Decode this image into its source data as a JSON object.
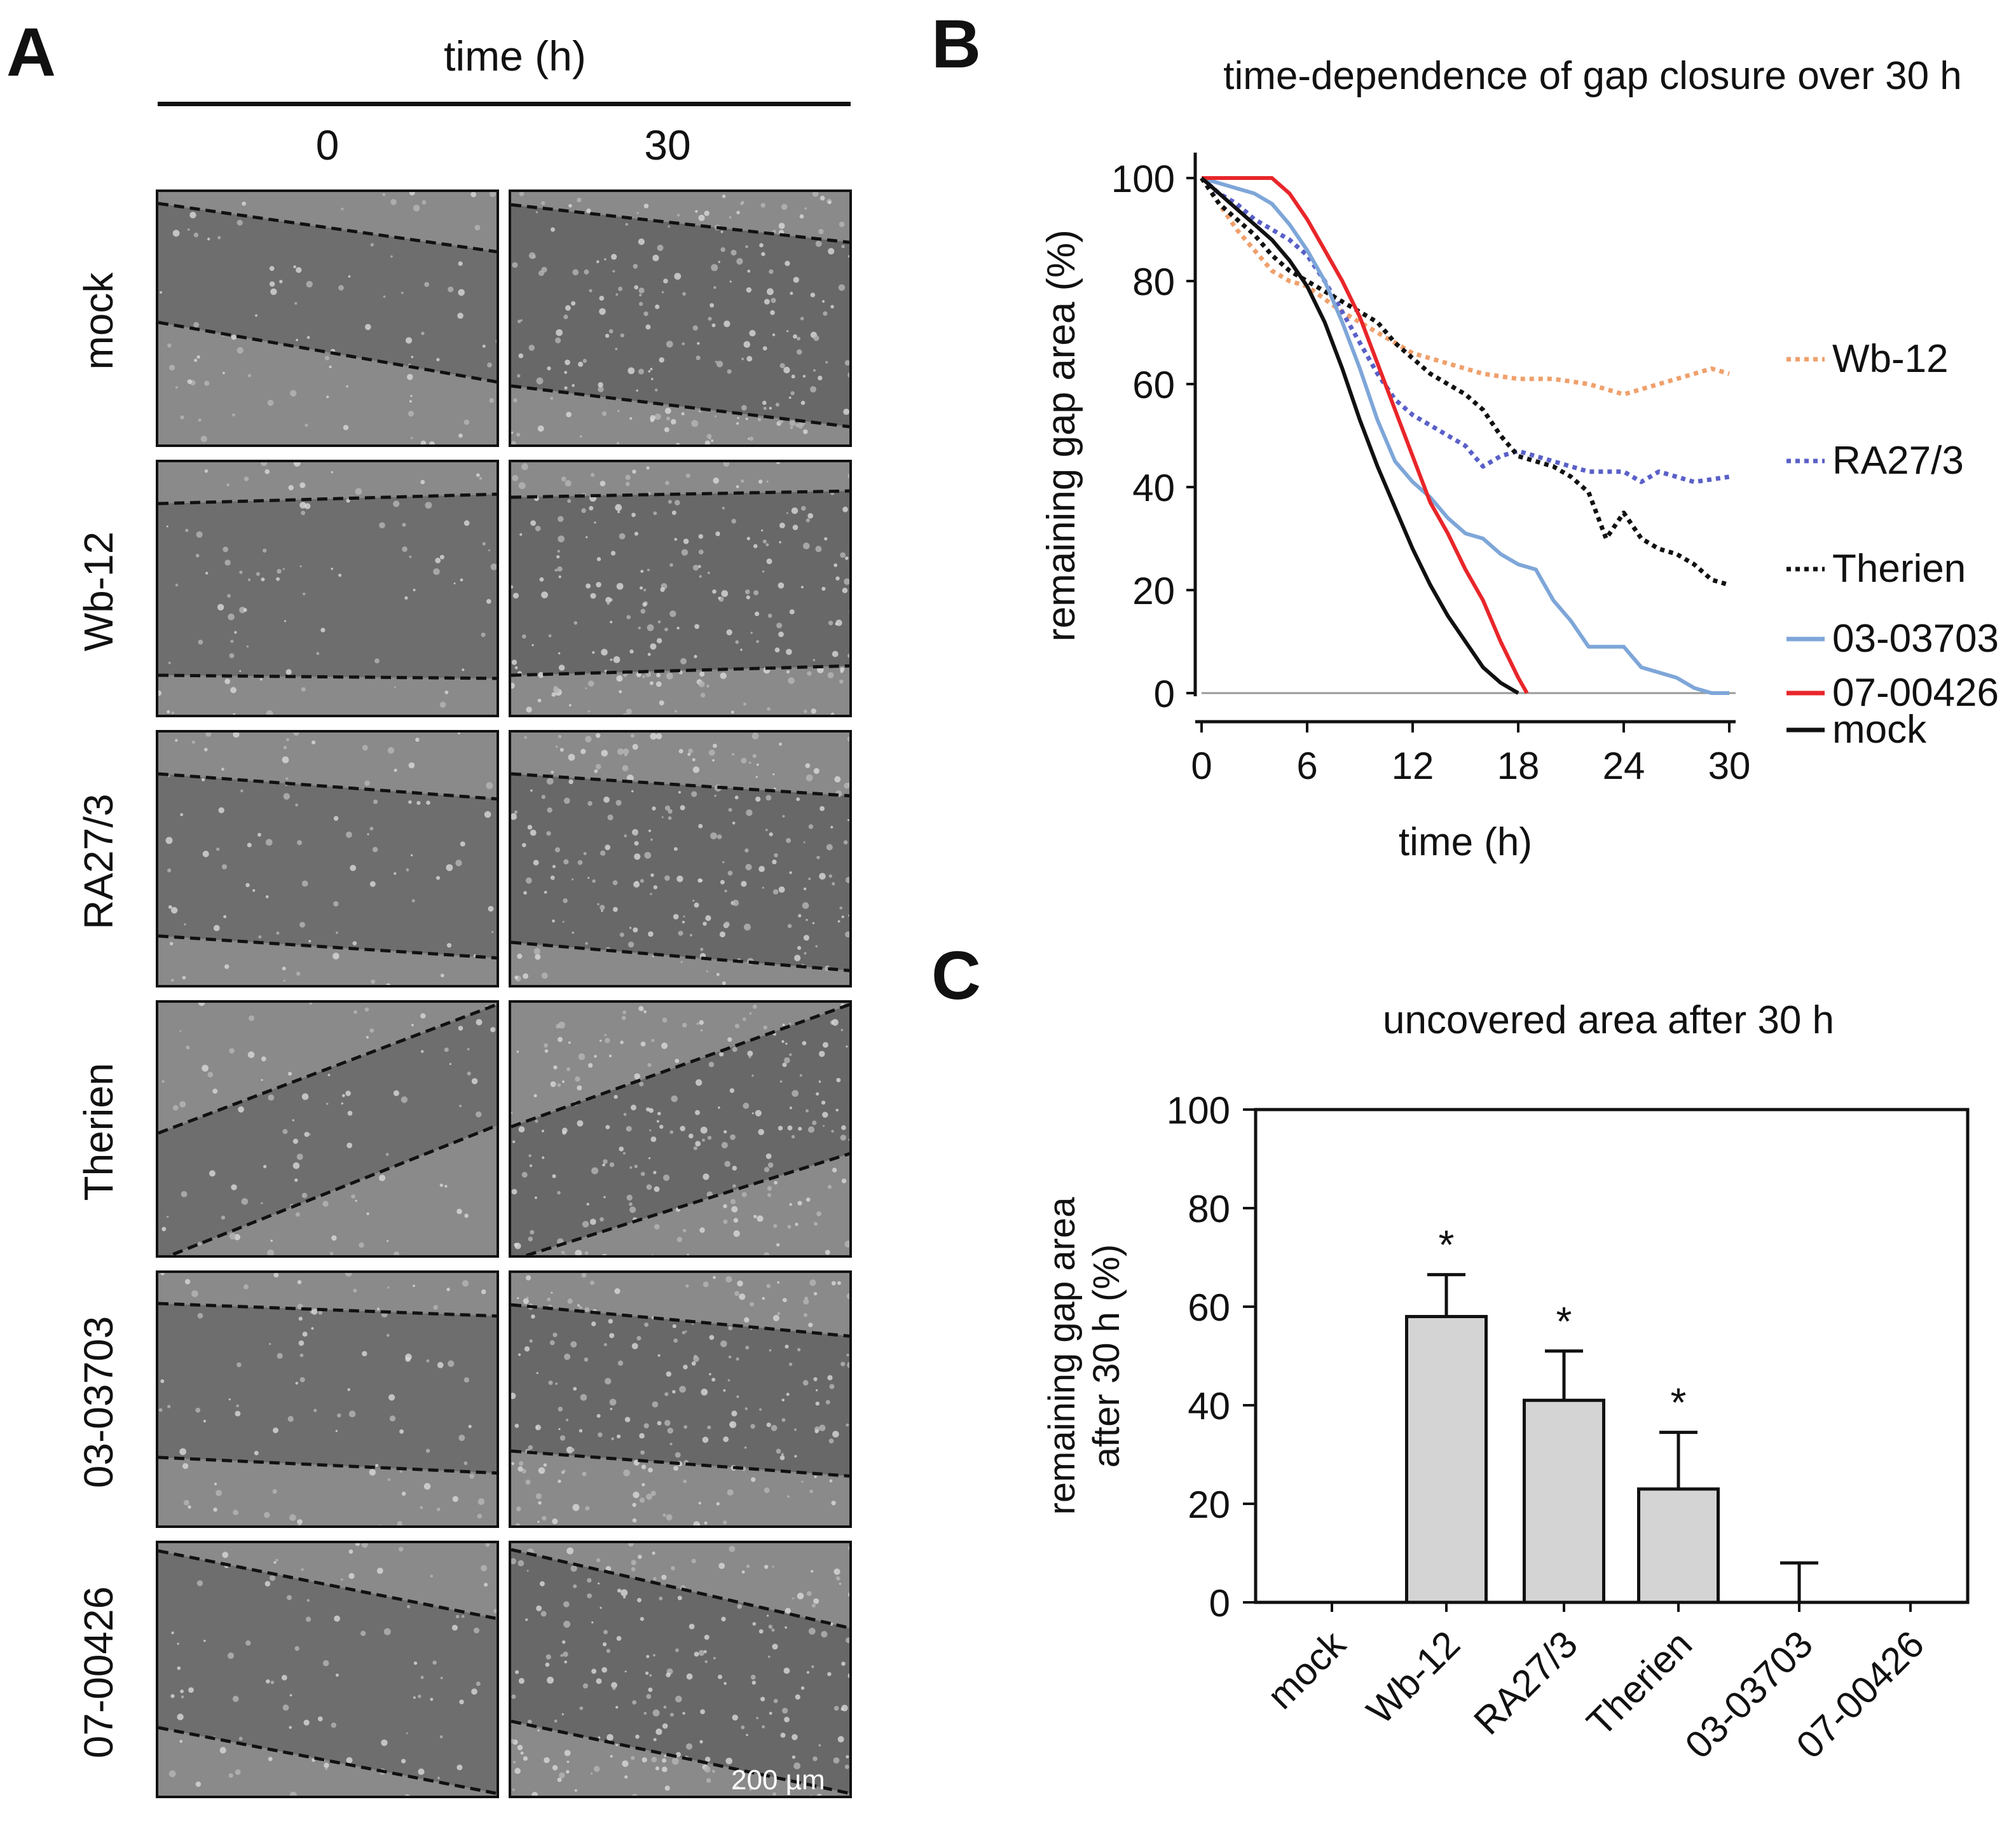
{
  "panels": {
    "a_letter": "A",
    "b_letter": "B",
    "c_letter": "C"
  },
  "panel_a": {
    "header": "time (h)",
    "columns": [
      "0",
      "30"
    ],
    "rows": [
      "mock",
      "Wb-12",
      "RA27/3",
      "Therien",
      "03-03703",
      "07-00426"
    ],
    "scale_bar": "200 µm"
  },
  "colors": {
    "Wb-12": "#f0a06c",
    "RA27/3": "#5a60c8",
    "Therien": "#111111",
    "03-03703": "#7ea6d8",
    "07-00426": "#e8262a",
    "mock": "#111111",
    "bar_fill": "#d4d4d4"
  },
  "chart_data": [
    {
      "type": "line",
      "title": "time-dependence of gap closure over 30 h",
      "xlabel": "time (h)",
      "ylabel": "remaining gap area (%)",
      "xlim": [
        0,
        30
      ],
      "ylim": [
        0,
        100
      ],
      "xticks": [
        0,
        6,
        12,
        18,
        24,
        30
      ],
      "yticks": [
        0,
        20,
        40,
        60,
        80,
        100
      ],
      "series": [
        {
          "name": "Wb-12",
          "style": "dotted",
          "x": [
            0,
            1,
            2,
            3,
            4,
            5,
            6,
            8,
            10,
            12,
            14,
            16,
            18,
            20,
            22,
            24,
            26,
            28,
            29,
            30
          ],
          "y": [
            100,
            95,
            90,
            86,
            82,
            80,
            79,
            74,
            70,
            66,
            64,
            62,
            61,
            61,
            60,
            58,
            60,
            62,
            63,
            62
          ]
        },
        {
          "name": "RA27/3",
          "style": "dotted",
          "x": [
            0,
            1,
            2,
            3,
            4,
            5,
            6,
            7,
            8,
            9,
            10,
            11,
            12,
            13,
            14,
            15,
            16,
            17,
            18,
            20,
            22,
            24,
            25,
            26,
            28,
            30
          ],
          "y": [
            100,
            97,
            95,
            92,
            90,
            88,
            85,
            80,
            74,
            68,
            62,
            57,
            54,
            52,
            50,
            48,
            44,
            46,
            47,
            45,
            43,
            43,
            41,
            43,
            41,
            42
          ]
        },
        {
          "name": "Therien",
          "style": "dotted",
          "x": [
            0,
            1,
            2,
            3,
            4,
            5,
            6,
            7,
            8,
            9,
            10,
            11,
            12,
            13,
            14,
            15,
            16,
            17,
            18,
            19,
            20,
            21,
            22,
            23,
            24,
            25,
            26,
            27,
            28,
            29,
            30
          ],
          "y": [
            100,
            95,
            92,
            89,
            85,
            82,
            80,
            78,
            76,
            74,
            72,
            68,
            65,
            62,
            60,
            58,
            55,
            50,
            46,
            45,
            44,
            42,
            39,
            30,
            35,
            30,
            28,
            27,
            25,
            22,
            21
          ]
        },
        {
          "name": "03-03703",
          "style": "solid",
          "x": [
            0,
            1,
            2,
            3,
            4,
            5,
            6,
            7,
            8,
            9,
            10,
            11,
            12,
            13,
            14,
            15,
            16,
            17,
            18,
            19,
            20,
            21,
            22,
            23,
            24,
            25,
            26,
            27,
            28,
            29,
            30
          ],
          "y": [
            100,
            99,
            98,
            97,
            95,
            91,
            86,
            80,
            72,
            63,
            53,
            45,
            41,
            38,
            34,
            31,
            30,
            27,
            25,
            24,
            18,
            14,
            9,
            9,
            9,
            5,
            4,
            3,
            1,
            0,
            0
          ]
        },
        {
          "name": "07-00426",
          "style": "solid",
          "x": [
            0,
            1,
            2,
            3,
            4,
            5,
            6,
            7,
            8,
            9,
            10,
            11,
            12,
            13,
            14,
            15,
            16,
            17,
            18,
            18.5
          ],
          "y": [
            100,
            100,
            100,
            100,
            100,
            97,
            92,
            86,
            80,
            73,
            64,
            55,
            46,
            37,
            31,
            24,
            18,
            10,
            3,
            0
          ]
        },
        {
          "name": "mock",
          "style": "solid",
          "x": [
            0,
            1,
            2,
            3,
            4,
            5,
            6,
            7,
            8,
            9,
            10,
            11,
            12,
            13,
            14,
            15,
            16,
            17,
            18
          ],
          "y": [
            100,
            97,
            94,
            91,
            88,
            84,
            79,
            72,
            63,
            53,
            44,
            36,
            28,
            21,
            15,
            10,
            5,
            2,
            0
          ]
        }
      ]
    },
    {
      "type": "bar",
      "title": "uncovered area after 30 h",
      "xlabel": "",
      "ylabel_line1": "remaining gap area",
      "ylabel_line2": "after 30 h (%)",
      "ylim": [
        0,
        100
      ],
      "yticks": [
        0,
        20,
        40,
        60,
        80,
        100
      ],
      "categories": [
        "mock",
        "Wb-12",
        "RA27/3",
        "Therien",
        "03-03703",
        "07-00426"
      ],
      "values": [
        0,
        58,
        41,
        23,
        0,
        0
      ],
      "errors": [
        0,
        8.5,
        10,
        11.5,
        8,
        0
      ],
      "significance": [
        "",
        "*",
        "*",
        "*",
        "",
        ""
      ]
    }
  ]
}
